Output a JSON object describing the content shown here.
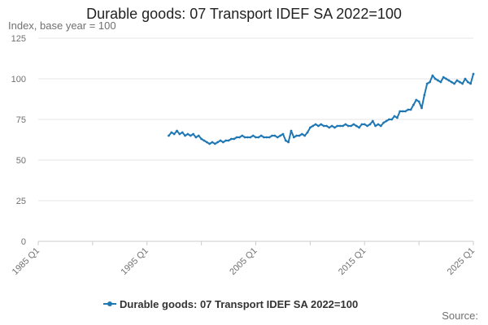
{
  "chart_data": {
    "type": "line",
    "title": "Durable goods: 07 Transport IDEF SA 2022=100",
    "ylabel": "Index, base year = 100",
    "xlabel": "",
    "ylim": [
      0,
      125
    ],
    "yticks": [
      0,
      25,
      50,
      75,
      100,
      125
    ],
    "xlim": [
      1985,
      2025
    ],
    "xticks": [
      {
        "value": 1985,
        "label": "1985 Q1"
      },
      {
        "value": 1995,
        "label": "1995 Q1"
      },
      {
        "value": 2005,
        "label": "2005 Q1"
      },
      {
        "value": 2015,
        "label": "2015 Q1"
      },
      {
        "value": 2025,
        "label": "2025 Q1"
      }
    ],
    "grid": true,
    "legend_position": "bottom",
    "series": [
      {
        "name": "Durable goods: 07 Transport IDEF SA 2022=100",
        "color": "#1f77b4",
        "x": [
          1997.0,
          1997.25,
          1997.5,
          1997.75,
          1998.0,
          1998.25,
          1998.5,
          1998.75,
          1999.0,
          1999.25,
          1999.5,
          1999.75,
          2000.0,
          2000.25,
          2000.5,
          2000.75,
          2001.0,
          2001.25,
          2001.5,
          2001.75,
          2002.0,
          2002.25,
          2002.5,
          2002.75,
          2003.0,
          2003.25,
          2003.5,
          2003.75,
          2004.0,
          2004.25,
          2004.5,
          2004.75,
          2005.0,
          2005.25,
          2005.5,
          2005.75,
          2006.0,
          2006.25,
          2006.5,
          2006.75,
          2007.0,
          2007.25,
          2007.5,
          2007.75,
          2008.0,
          2008.25,
          2008.5,
          2008.75,
          2009.0,
          2009.25,
          2009.5,
          2009.75,
          2010.0,
          2010.25,
          2010.5,
          2010.75,
          2011.0,
          2011.25,
          2011.5,
          2011.75,
          2012.0,
          2012.25,
          2012.5,
          2012.75,
          2013.0,
          2013.25,
          2013.5,
          2013.75,
          2014.0,
          2014.25,
          2014.5,
          2014.75,
          2015.0,
          2015.25,
          2015.5,
          2015.75,
          2016.0,
          2016.25,
          2016.5,
          2016.75,
          2017.0,
          2017.25,
          2017.5,
          2017.75,
          2018.0,
          2018.25,
          2018.5,
          2018.75,
          2019.0,
          2019.25,
          2019.5,
          2019.75,
          2020.0,
          2020.25,
          2020.5,
          2020.75,
          2021.0,
          2021.25,
          2021.5,
          2021.75,
          2022.0,
          2022.25,
          2022.5,
          2022.75,
          2023.0,
          2023.25,
          2023.5,
          2023.75,
          2024.0,
          2024.25,
          2024.5,
          2024.75,
          2025.0
        ],
        "values": [
          65,
          67,
          66,
          68,
          66,
          67,
          65,
          66,
          65,
          66,
          64,
          65,
          63,
          62,
          61,
          60,
          61,
          60,
          61,
          62,
          61,
          62,
          62,
          63,
          63,
          64,
          64,
          65,
          64,
          64,
          64,
          65,
          64,
          64,
          65,
          64,
          64,
          64,
          65,
          65,
          64,
          65,
          66,
          62,
          61,
          68,
          64,
          65,
          65,
          66,
          65,
          67,
          70,
          71,
          72,
          71,
          72,
          71,
          71,
          70,
          71,
          70,
          71,
          71,
          71,
          72,
          71,
          71,
          72,
          71,
          70,
          72,
          72,
          71,
          72,
          74,
          71,
          72,
          71,
          73,
          74,
          75,
          75,
          77,
          76,
          80,
          80,
          80,
          81,
          81,
          84,
          87,
          86,
          82,
          90,
          97,
          98,
          102,
          100,
          99,
          98,
          101,
          100,
          99,
          98,
          97,
          99,
          98,
          97,
          100,
          98,
          97,
          103
        ]
      }
    ]
  },
  "footer": {
    "source_label": "Source:"
  }
}
